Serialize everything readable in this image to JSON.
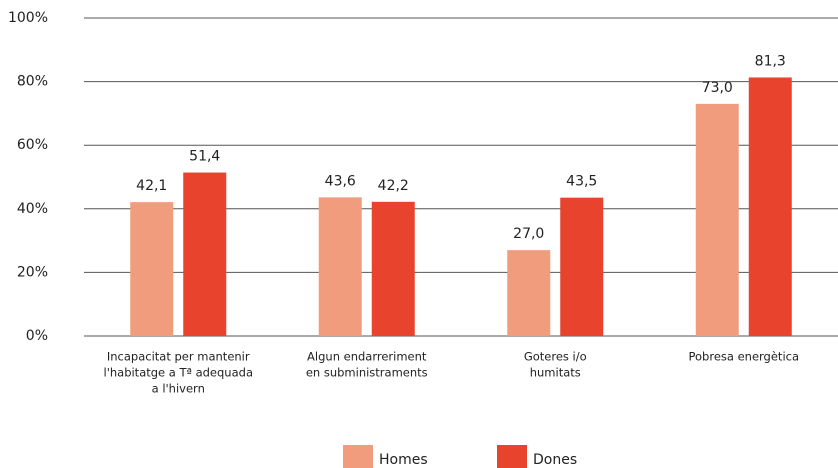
{
  "chart_data": {
    "type": "bar",
    "categories": [
      [
        "Incapacitat per mantenir",
        "l'habitatge a Tª adequada",
        "a l'hivern"
      ],
      [
        "Algun endarreriment",
        "en subministraments"
      ],
      [
        "Goteres i/o",
        "humitats"
      ],
      [
        "Pobresa energètica"
      ]
    ],
    "series": [
      {
        "name": "Homes",
        "color": "#f29c7e",
        "values": [
          42.1,
          43.6,
          27.0,
          73.0
        ],
        "value_labels": [
          "42,1",
          "43,6",
          "27,0",
          "73,0"
        ]
      },
      {
        "name": "Dones",
        "color": "#e8432d",
        "values": [
          51.4,
          42.2,
          43.5,
          81.3
        ],
        "value_labels": [
          "51,4",
          "42,2",
          "43,5",
          "81,3"
        ]
      }
    ],
    "ylim": [
      0,
      100
    ],
    "yticks": [
      {
        "value": 0,
        "label": "0%"
      },
      {
        "value": 20,
        "label": "20%"
      },
      {
        "value": 40,
        "label": "40%"
      },
      {
        "value": 60,
        "label": "60%"
      },
      {
        "value": 80,
        "label": "80%"
      },
      {
        "value": 100,
        "label": "100%"
      }
    ],
    "grid": true,
    "legend": "bottom"
  }
}
